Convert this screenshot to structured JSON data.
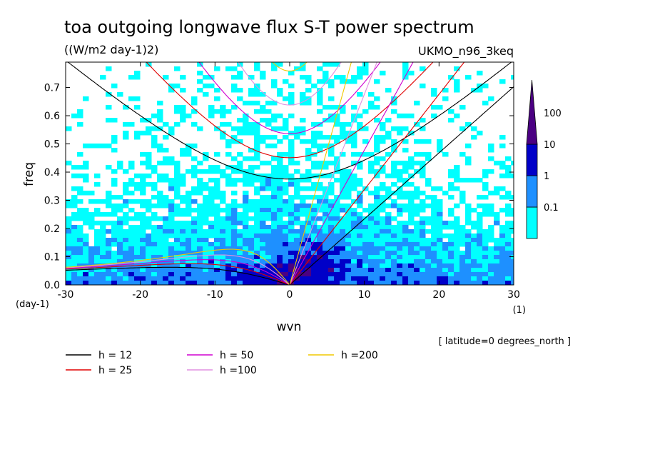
{
  "chart_data": {
    "type": "heatmap",
    "title": "toa outgoing longwave flux S-T power spectrum",
    "units": "((W/m2 day-1)2)",
    "model_label": "UKMO_n96_3keq",
    "xlabel": "wvn",
    "ylabel": "freq",
    "x_unit": "(1)",
    "y_unit": "(day-1)",
    "xlim": [
      -30,
      30
    ],
    "ylim": [
      0.0,
      0.79
    ],
    "x_ticks": [
      "-30",
      "-20",
      "-10",
      "0",
      "10",
      "20",
      "30"
    ],
    "y_ticks": [
      "0.0",
      "0.1",
      "0.2",
      "0.3",
      "0.4",
      "0.5",
      "0.6",
      "0.7"
    ],
    "colorbar": {
      "levels": [
        "0.1",
        "1",
        "10",
        "100"
      ],
      "colors": [
        "#00ffff",
        "#1e90ff",
        "#0000c8",
        "#4b0082"
      ]
    },
    "dispersion_curves": [
      {
        "name": "h = 12",
        "h": 12,
        "color": "#000000"
      },
      {
        "name": "h = 25",
        "h": 25,
        "color": "#e00000"
      },
      {
        "name": "h = 50",
        "h": 50,
        "color": "#d000d0"
      },
      {
        "name": "h =100",
        "h": 100,
        "color": "#e090e0"
      },
      {
        "name": "h =200",
        "h": 200,
        "color": "#f0c800"
      }
    ],
    "annotation": "[ latitude=0 degrees_north ]"
  }
}
